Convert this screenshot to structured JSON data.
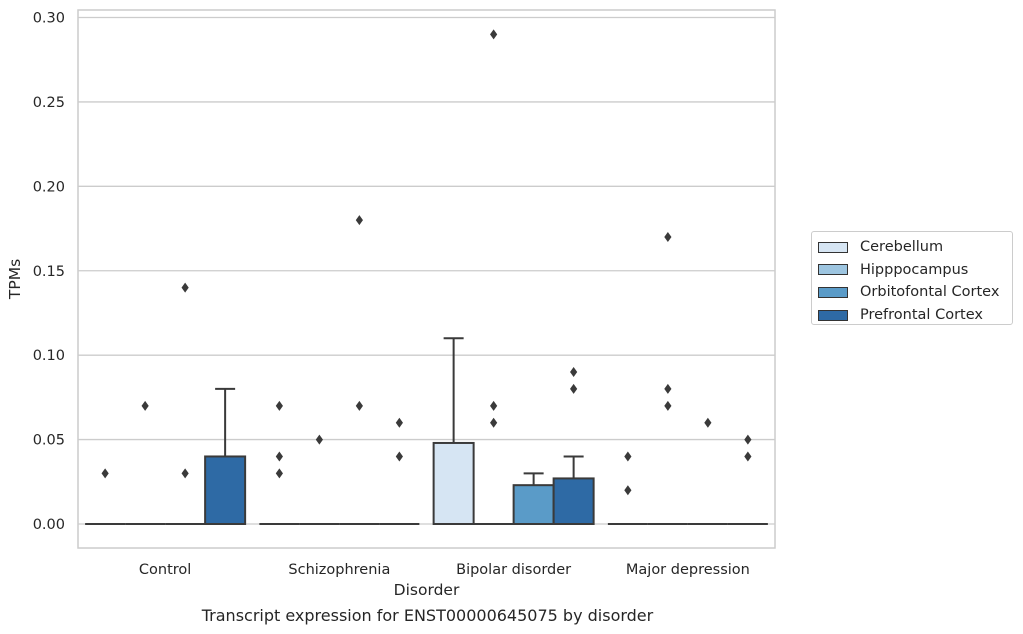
{
  "chart_data": {
    "type": "box",
    "xlabel": "Disorder",
    "ylabel": "TPMs",
    "caption": "Transcript expression for ENST00000645075 by disorder",
    "ylim": [
      -0.014,
      0.305
    ],
    "yticks": [
      "0.00",
      "0.05",
      "0.10",
      "0.15",
      "0.20",
      "0.25",
      "0.30"
    ],
    "grid": "horizontal",
    "legend_position": "right",
    "categories": [
      "Control",
      "Schizophrenia",
      "Bipolar disorder",
      "Major depression"
    ],
    "series": [
      {
        "name": "Cerebellum",
        "color": "#d6e5f3",
        "boxes": [
          {
            "q1": 0,
            "median": 0,
            "q3": 0,
            "whisker_low": 0,
            "whisker_high": 0,
            "outliers": [
              0.03
            ]
          },
          {
            "q1": 0,
            "median": 0,
            "q3": 0,
            "whisker_low": 0,
            "whisker_high": 0,
            "outliers": [
              0.03,
              0.04,
              0.07
            ]
          },
          {
            "q1": 0,
            "median": 0,
            "q3": 0.048,
            "whisker_low": 0,
            "whisker_high": 0.11,
            "outliers": []
          },
          {
            "q1": 0,
            "median": 0,
            "q3": 0,
            "whisker_low": 0,
            "whisker_high": 0,
            "outliers": [
              0.02,
              0.04
            ]
          }
        ]
      },
      {
        "name": "Hipppocampus",
        "color": "#9dc5e0",
        "boxes": [
          {
            "q1": 0,
            "median": 0,
            "q3": 0,
            "whisker_low": 0,
            "whisker_high": 0,
            "outliers": [
              0.07
            ]
          },
          {
            "q1": 0,
            "median": 0,
            "q3": 0,
            "whisker_low": 0,
            "whisker_high": 0,
            "outliers": [
              0.05
            ]
          },
          {
            "q1": 0,
            "median": 0,
            "q3": 0,
            "whisker_low": 0,
            "whisker_high": 0,
            "outliers": [
              0.06,
              0.07,
              0.29
            ]
          },
          {
            "q1": 0,
            "median": 0,
            "q3": 0,
            "whisker_low": 0,
            "whisker_high": 0,
            "outliers": [
              0.07,
              0.08,
              0.17
            ]
          }
        ]
      },
      {
        "name": "Orbitofontal Cortex",
        "color": "#5a9bc8",
        "boxes": [
          {
            "q1": 0,
            "median": 0,
            "q3": 0,
            "whisker_low": 0,
            "whisker_high": 0,
            "outliers": [
              0.03,
              0.14
            ]
          },
          {
            "q1": 0,
            "median": 0,
            "q3": 0,
            "whisker_low": 0,
            "whisker_high": 0,
            "outliers": [
              0.07,
              0.18
            ]
          },
          {
            "q1": 0,
            "median": 0,
            "q3": 0.023,
            "whisker_low": 0,
            "whisker_high": 0.03,
            "outliers": []
          },
          {
            "q1": 0,
            "median": 0,
            "q3": 0,
            "whisker_low": 0,
            "whisker_high": 0,
            "outliers": [
              0.06
            ]
          }
        ]
      },
      {
        "name": "Prefrontal Cortex",
        "color": "#2e6aa5",
        "boxes": [
          {
            "q1": 0,
            "median": 0,
            "q3": 0.04,
            "whisker_low": 0,
            "whisker_high": 0.08,
            "outliers": []
          },
          {
            "q1": 0,
            "median": 0,
            "q3": 0,
            "whisker_low": 0,
            "whisker_high": 0,
            "outliers": [
              0.04,
              0.06
            ]
          },
          {
            "q1": 0,
            "median": 0,
            "q3": 0.027,
            "whisker_low": 0,
            "whisker_high": 0.04,
            "outliers": [
              0.08,
              0.09
            ]
          },
          {
            "q1": 0,
            "median": 0,
            "q3": 0,
            "whisker_low": 0,
            "whisker_high": 0,
            "outliers": [
              0.04,
              0.05
            ]
          }
        ]
      }
    ]
  }
}
